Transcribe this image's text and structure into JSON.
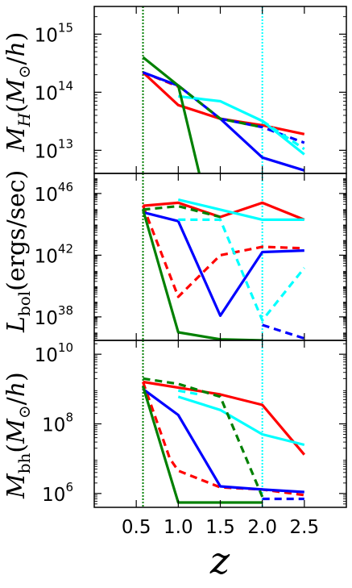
{
  "chart_data": [
    {
      "type": "line",
      "scale": "log",
      "ylabel": "M_H(M_⊙/h)",
      "ylim": [
        4000000000000.0,
        3000000000000000.0
      ],
      "xlim": [
        0,
        3
      ],
      "yticks": [
        {
          "value": 10000000000000.0,
          "mant": "10",
          "exp": "13"
        },
        {
          "value": 100000000000000.0,
          "mant": "10",
          "exp": "14"
        },
        {
          "value": 1000000000000000.0,
          "mant": "10",
          "exp": "15"
        }
      ],
      "vlines": [
        {
          "x": 0.58,
          "color": "#008000"
        },
        {
          "x": 2.0,
          "color": "#00ffff"
        }
      ],
      "series": [
        {
          "color": "#ff0000",
          "dash": false,
          "x": [
            0.58,
            1.0,
            1.5,
            2.0,
            2.5
          ],
          "y": [
            220000000000000.0,
            60000000000000.0,
            35000000000000.0,
            27000000000000.0,
            19000000000000.0
          ]
        },
        {
          "color": "#ff0000",
          "dash": true,
          "x": [
            0.58,
            1.0
          ],
          "y": [
            220000000000000.0,
            125000000000000.0
          ]
        },
        {
          "color": "#0000ff",
          "dash": false,
          "x": [
            0.58,
            1.0,
            1.5,
            2.0,
            2.5
          ],
          "y": [
            220000000000000.0,
            130000000000000.0,
            35000000000000.0,
            7500000000000.0,
            4500000000000.0
          ]
        },
        {
          "color": "#0000ff",
          "dash": true,
          "x": [
            1.5,
            2.0,
            2.5
          ],
          "y": [
            35000000000000.0,
            25000000000000.0,
            13500000000000.0
          ]
        },
        {
          "color": "#00ffff",
          "dash": false,
          "x": [
            1.0,
            1.5,
            2.0,
            2.5
          ],
          "y": [
            85000000000000.0,
            70000000000000.0,
            32000000000000.0,
            8500000000000.0
          ]
        },
        {
          "color": "#00ffff",
          "dash": true,
          "x": [
            2.0,
            2.5
          ],
          "y": [
            32000000000000.0,
            10500000000000.0
          ]
        },
        {
          "color": "#008000",
          "dash": false,
          "x": [
            0.58,
            1.0,
            1.25
          ],
          "y": [
            400000000000000.0,
            130000000000000.0,
            4000000000000.0
          ]
        },
        {
          "color": "#008000",
          "dash": true,
          "x": [
            1.0,
            1.5,
            2.0
          ],
          "y": [
            130000000000000.0,
            35000000000000.0,
            25000000000000.0
          ]
        }
      ]
    },
    {
      "type": "line",
      "scale": "log",
      "ylabel": "L_bol(ergs/sec)",
      "ylim": [
        3e+36,
        2e+47
      ],
      "xlim": [
        0,
        3
      ],
      "yticks": [
        {
          "value": 1e+38,
          "mant": "10",
          "exp": "38"
        },
        {
          "value": 1e+42,
          "mant": "10",
          "exp": "42"
        },
        {
          "value": 1e+46,
          "mant": "10",
          "exp": "46"
        }
      ],
      "vlines": [
        {
          "x": 0.58,
          "color": "#008000"
        },
        {
          "x": 2.0,
          "color": "#00ffff"
        }
      ],
      "series": [
        {
          "color": "#ff0000",
          "dash": false,
          "x": [
            0.58,
            1.0,
            1.5,
            2.0,
            2.5
          ],
          "y": [
            1.6e+45,
            2.5e+45,
            3e+44,
            2.5e+45,
            2e+44
          ]
        },
        {
          "color": "#ff0000",
          "dash": true,
          "x": [
            0.58,
            1.0,
            1.5,
            2.0,
            2.5
          ],
          "y": [
            1.6e+45,
            2e+39,
            1e+42,
            3.5e+42,
            2.8e+42
          ]
        },
        {
          "color": "#0000ff",
          "dash": false,
          "x": [
            0.58,
            1.0,
            1.5,
            2.0,
            2.5
          ],
          "y": [
            6e+44,
            1.6e+44,
            1.2e+38,
            1.6e+42,
            2e+42
          ]
        },
        {
          "color": "#0000ff",
          "dash": true,
          "x": [
            2.0,
            2.5
          ],
          "y": [
            3e+37,
            4e+36
          ]
        },
        {
          "color": "#00ffff",
          "dash": false,
          "x": [
            1.0,
            1.5,
            2.0,
            2.5
          ],
          "y": [
            4e+45,
            9e+44,
            2e+44,
            2e+44
          ]
        },
        {
          "color": "#00ffff",
          "dash": true,
          "x": [
            1.0,
            1.5,
            2.0,
            2.5
          ],
          "y": [
            2e+44,
            2e+44,
            6e+37,
            1.5e+41
          ]
        },
        {
          "color": "#008000",
          "dash": false,
          "x": [
            0.58,
            1.0,
            1.5,
            2.0
          ],
          "y": [
            9e+44,
            1e+37,
            3.5e+36,
            3e+36
          ]
        },
        {
          "color": "#008000",
          "dash": true,
          "x": [
            0.58,
            1.0,
            1.5
          ],
          "y": [
            9e+44,
            1.5e+45,
            3e+44
          ]
        }
      ]
    },
    {
      "type": "line",
      "scale": "log",
      "ylabel": "M_bh(M_⊙/h)",
      "ylim": [
        400000.0,
        25000000000.0
      ],
      "xlim": [
        0,
        3
      ],
      "xticks": [
        "0.5",
        "1.0",
        "1.5",
        "2.0",
        "2.5"
      ],
      "xtick_values": [
        0.5,
        1.0,
        1.5,
        2.0,
        2.5
      ],
      "xlabel": "z",
      "yticks": [
        {
          "value": 1000000.0,
          "mant": "10",
          "exp": "6"
        },
        {
          "value": 100000000.0,
          "mant": "10",
          "exp": "8"
        },
        {
          "value": 10000000000.0,
          "mant": "10",
          "exp": "10"
        }
      ],
      "vlines": [
        {
          "x": 0.58,
          "color": "#008000"
        },
        {
          "x": 2.0,
          "color": "#00ffff"
        }
      ],
      "series": [
        {
          "color": "#ff0000",
          "dash": false,
          "x": [
            0.58,
            1.0,
            1.5,
            2.0,
            2.5
          ],
          "y": [
            1600000000.0,
            1100000000.0,
            700000000.0,
            350000000.0,
            13000000.0
          ]
        },
        {
          "color": "#ff0000",
          "dash": true,
          "x": [
            0.58,
            0.9,
            1.0,
            1.5,
            2.0,
            2.5
          ],
          "y": [
            1600000000.0,
            10000000.0,
            4500000.0,
            1500000.0,
            1300000.0,
            900000.0
          ]
        },
        {
          "color": "#0000ff",
          "dash": false,
          "x": [
            0.58,
            1.0,
            1.5,
            2.0,
            2.5
          ],
          "y": [
            1000000000.0,
            180000000.0,
            1600000.0,
            1300000.0,
            1100000.0
          ]
        },
        {
          "color": "#0000ff",
          "dash": true,
          "x": [
            2.0,
            2.5
          ],
          "y": [
            700000.0,
            700000.0
          ]
        },
        {
          "color": "#00ffff",
          "dash": false,
          "x": [
            1.0,
            1.5,
            2.0,
            2.5
          ],
          "y": [
            600000000.0,
            250000000.0,
            50000000.0,
            25000000.0
          ]
        },
        {
          "color": "#00ffff",
          "dash": true,
          "x": [
            1.0,
            1.25
          ],
          "y": [
            900000000.0,
            700000000.0
          ]
        },
        {
          "color": "#008000",
          "dash": false,
          "x": [
            0.58,
            1.0,
            1.5,
            2.0
          ],
          "y": [
            1200000000.0,
            550000.0,
            550000.0,
            550000.0
          ]
        },
        {
          "color": "#008000",
          "dash": true,
          "x": [
            0.58,
            1.0,
            1.5,
            2.0
          ],
          "y": [
            2000000000.0,
            1400000000.0,
            600000000.0,
            800000.0
          ]
        }
      ]
    }
  ]
}
